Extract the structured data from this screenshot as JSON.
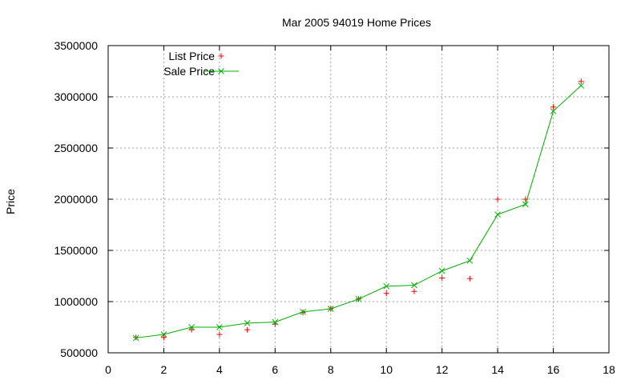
{
  "chart_data": {
    "type": "line",
    "title": "Mar 2005 94019 Home Prices",
    "xlabel": "",
    "ylabel": "Price",
    "xlim": [
      0,
      18
    ],
    "ylim": [
      500000,
      3500000
    ],
    "x_ticks": [
      "0",
      "2",
      "4",
      "6",
      "8",
      "10",
      "12",
      "14",
      "16",
      "18"
    ],
    "y_ticks": [
      "500000",
      "1000000",
      "1500000",
      "2000000",
      "2500000",
      "3000000",
      "3500000"
    ],
    "grid": true,
    "legend_position": "top-left",
    "x": [
      1,
      2,
      3,
      4,
      5,
      6,
      7,
      8,
      9,
      10,
      11,
      12,
      13,
      14,
      15,
      16,
      17
    ],
    "series": [
      {
        "name": "List Price",
        "style": "points",
        "marker": "plus",
        "color": "#ff0000",
        "values": [
          650000,
          650000,
          725000,
          680000,
          725000,
          780000,
          895000,
          930000,
          1025000,
          1080000,
          1100000,
          1230000,
          1225000,
          2000000,
          2000000,
          2900000,
          3150000
        ]
      },
      {
        "name": "Sale Price",
        "style": "linespoints",
        "marker": "cross",
        "color": "#00b000",
        "values": [
          645000,
          680000,
          750000,
          750000,
          790000,
          800000,
          900000,
          930000,
          1025000,
          1150000,
          1160000,
          1300000,
          1400000,
          1850000,
          1950000,
          2860000,
          3110000
        ]
      }
    ]
  }
}
